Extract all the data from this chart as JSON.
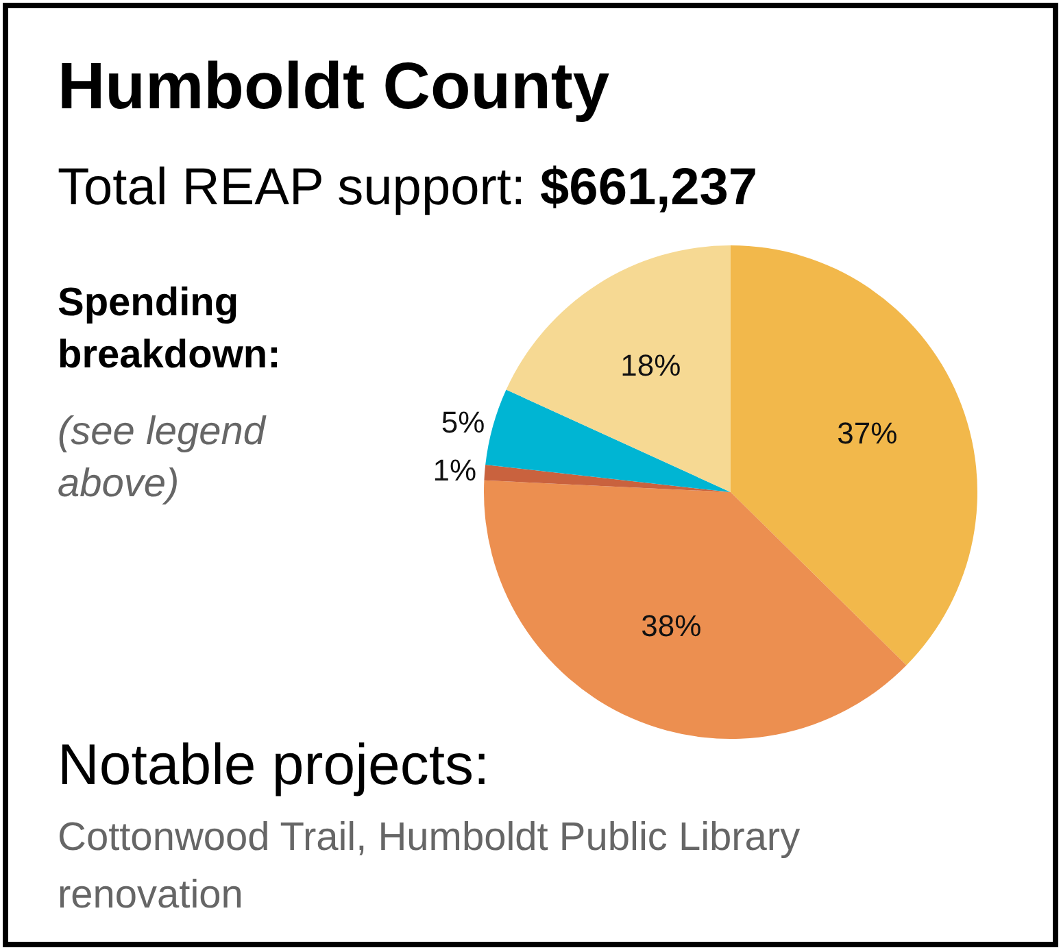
{
  "chart_data": {
    "type": "pie",
    "title": "Humboldt County",
    "subtitle": "Total REAP support: $661,237",
    "categories": [
      null,
      null,
      null,
      null,
      null
    ],
    "values": [
      37,
      38,
      1,
      5,
      18
    ],
    "colors": [
      "#f2b84b",
      "#ec8f50",
      "#c9623e",
      "#00b5d3",
      "#f6d993"
    ],
    "value_labels": [
      "37%",
      "38%",
      "1%",
      "5%",
      "18%"
    ],
    "legend": false,
    "annotations": [
      "Spending breakdown:",
      "(see legend above)",
      "Notable projects:",
      "Cottonwood Trail, Humboldt Public Library renovation"
    ]
  }
}
